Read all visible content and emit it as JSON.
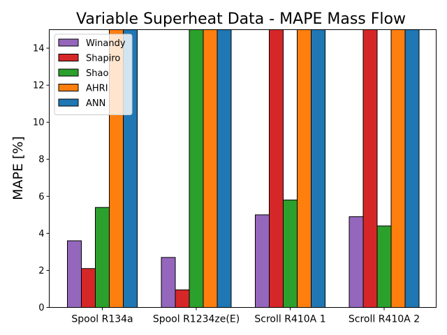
{
  "chart_data": {
    "type": "bar",
    "title": "Variable Superheat Data - MAPE Mass Flow",
    "xlabel": "",
    "ylabel": "MAPE [%]",
    "ylim": [
      0,
      15
    ],
    "yticks": [
      0,
      2,
      4,
      6,
      8,
      10,
      12,
      14
    ],
    "grid": false,
    "legend_position": "top-left",
    "categories": [
      "Spool R134a",
      "Spool R1234ze(E)",
      "Scroll R410A 1",
      "Scroll R410A 2"
    ],
    "series": [
      {
        "name": "Winandy",
        "color": "#9467bd",
        "values": [
          3.6,
          2.7,
          5.0,
          4.9
        ]
      },
      {
        "name": "Shapiro",
        "color": "#d62728",
        "values": [
          2.1,
          0.95,
          15,
          15
        ]
      },
      {
        "name": "Shao",
        "color": "#2ca02c",
        "values": [
          5.4,
          15,
          5.8,
          4.4
        ]
      },
      {
        "name": "AHRI",
        "color": "#ff7f0e",
        "values": [
          15,
          15,
          15,
          15
        ]
      },
      {
        "name": "ANN",
        "color": "#1f77b4",
        "values": [
          15,
          15,
          15,
          15
        ]
      }
    ]
  }
}
